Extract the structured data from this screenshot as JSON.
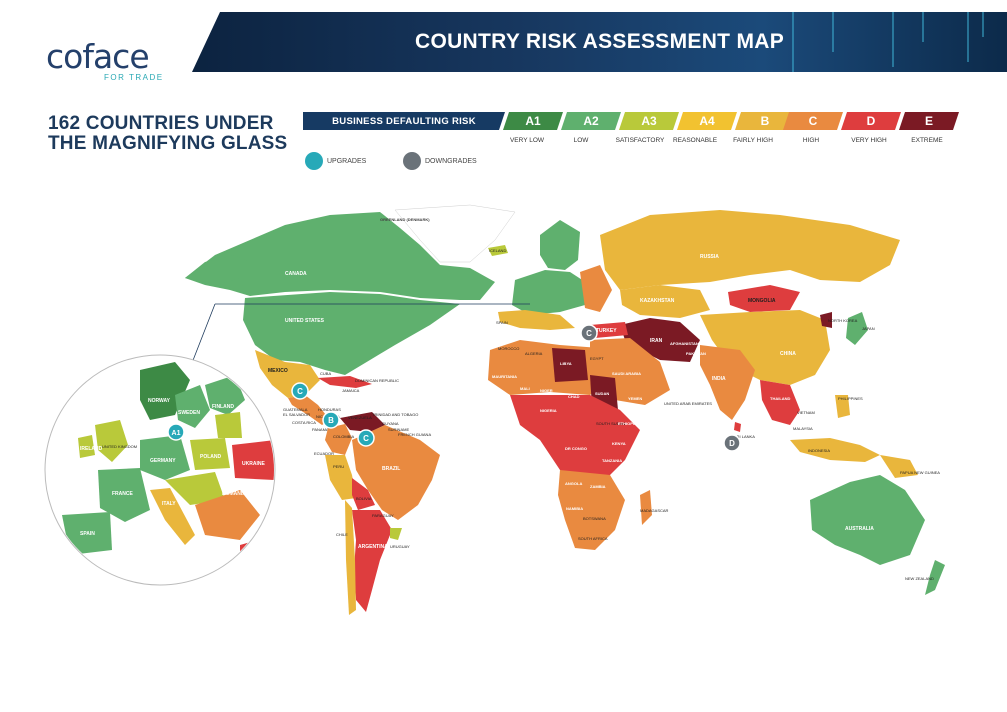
{
  "logo": {
    "brand": "coface",
    "tagline": "FOR TRADE"
  },
  "banner": {
    "title": "COUNTRY RISK ASSESSMENT MAP"
  },
  "headline": {
    "line1": "162 COUNTRIES UNDER",
    "line2": "THE MAGNIFYING GLASS"
  },
  "legend": {
    "label": "BUSINESS DEFAULTING RISK",
    "ratings": [
      {
        "code": "A1",
        "text": "VERY LOW",
        "color": "#3d8a45"
      },
      {
        "code": "A2",
        "text": "LOW",
        "color": "#5fb06e"
      },
      {
        "code": "A3",
        "text": "SATISFACTORY",
        "color": "#b9c93a"
      },
      {
        "code": "A4",
        "text": "REASONABLE",
        "color": "#f2c230"
      },
      {
        "code": "B",
        "text": "FAIRLY HIGH",
        "color": "#e9b63c"
      },
      {
        "code": "C",
        "text": "HIGH",
        "color": "#e98a40"
      },
      {
        "code": "D",
        "text": "VERY HIGH",
        "color": "#de3d3e"
      },
      {
        "code": "E",
        "text": "EXTREME",
        "color": "#7b1a24"
      }
    ],
    "upgrades": "UPGRADES",
    "downgrades": "DOWNGRADES",
    "upgrade_color": "#27a9b8",
    "downgrade_color": "#6a7279"
  },
  "map": {
    "labels": {
      "greenland": "GREENLAND (DENMARK)",
      "canada": "CANADA",
      "us": "UNITED STATES",
      "mexico": "MEXICO",
      "cuba": "CUBA",
      "dominican": "DOMINICAN REPUBLIC",
      "jamaica": "JAMAICA",
      "guatemala": "GUATEMALA",
      "el_salvador": "EL SALVADOR",
      "honduras": "HONDURAS",
      "nicaragua": "NICARAGUA",
      "costa_rica": "COSTA RICA",
      "panama": "PANAMA",
      "venezuela": "VENEZUELA",
      "trinidad": "TRINIDAD AND TOBAGO",
      "guyana": "GUYANA",
      "suriname": "SURINAME",
      "french_guiana": "FRENCH GUIANA",
      "colombia": "COLOMBIA",
      "ecuador": "ECUADOR",
      "peru": "PERU",
      "brazil": "BRAZIL",
      "bolivia": "BOLIVIA",
      "paraguay": "PARAGUAY",
      "chile": "CHILE",
      "argentina": "ARGENTINA",
      "uruguay": "URUGUAY",
      "iceland": "ICELAND",
      "russia": "RUSSIA",
      "kazakhstan": "KAZAKHSTAN",
      "mongolia": "MONGOLIA",
      "china": "CHINA",
      "north_korea": "NORTH KOREA",
      "japan": "JAPAN",
      "india": "INDIA",
      "iran": "IRAN",
      "afghanistan": "AFGHANISTAN",
      "pakistan": "PAKISTAN",
      "turkey": "TURKEY",
      "saudi": "SAUDI ARABIA",
      "libya": "LIBYA",
      "algeria": "ALGERIA",
      "egypt": "EGYPT",
      "sudan": "SUDAN",
      "south_sudan": "SOUTH SUDAN",
      "niger": "NIGER",
      "mali": "MALI",
      "chad": "CHAD",
      "nigeria": "NIGERIA",
      "ethiopia": "ETHIOPIA",
      "kenya": "KENYA",
      "tanzania": "TANZANIA",
      "dr_congo": "DR CONGO",
      "angola": "ANGOLA",
      "zambia": "ZAMBIA",
      "namibia": "NAMIBIA",
      "botswana": "BOTSWANA",
      "south_africa": "SOUTH AFRICA",
      "madagascar": "MADAGASCAR",
      "yemen": "YEMEN",
      "uae": "UNITED ARAB EMIRATES",
      "thailand": "THAILAND",
      "vietnam": "VIETNAM",
      "philippines": "PHILIPPINES",
      "indonesia": "INDONESIA",
      "malaysia": "MALAYSIA",
      "png": "PAPUA NEW GUINEA",
      "australia": "AUSTRALIA",
      "new_zealand": "NEW ZEALAND",
      "sri_lanka": "SRI LANKA",
      "morocco": "MOROCCO",
      "mauritania": "MAURITANIA",
      "norway": "NORWAY",
      "sweden": "SWEDEN",
      "finland": "FINLAND",
      "germany": "GERMANY",
      "france": "FRANCE",
      "spain": "SPAIN",
      "poland": "POLAND",
      "italy": "ITALY",
      "ukraine": "UKRAINE",
      "romania": "ROMANIA",
      "ireland": "IRELAND",
      "uk": "UNITED KINGDOM"
    },
    "markers": [
      {
        "rating": "C",
        "kind": "upgrade"
      },
      {
        "rating": "B",
        "kind": "upgrade"
      },
      {
        "rating": "C",
        "kind": "upgrade"
      },
      {
        "rating": "A1",
        "kind": "upgrade"
      },
      {
        "rating": "C",
        "kind": "downgrade"
      },
      {
        "rating": "D",
        "kind": "downgrade"
      }
    ]
  }
}
